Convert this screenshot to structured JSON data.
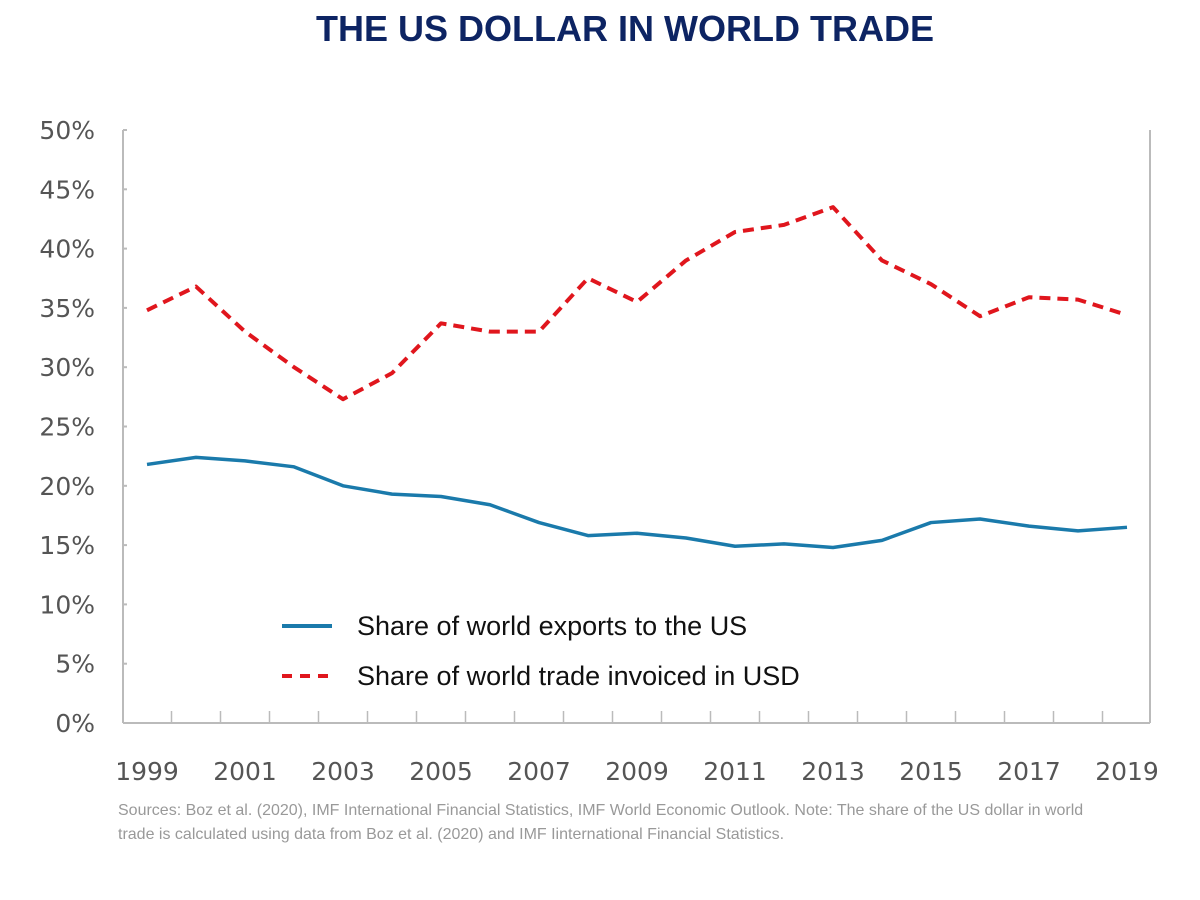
{
  "chart_data": {
    "type": "line",
    "title": "THE US DOLLAR IN WORLD TRADE",
    "xlabel": "",
    "ylabel": "",
    "x": [
      1999,
      2000,
      2001,
      2002,
      2003,
      2004,
      2005,
      2006,
      2007,
      2008,
      2009,
      2010,
      2011,
      2012,
      2013,
      2014,
      2015,
      2016,
      2017,
      2018,
      2019
    ],
    "x_tick_labels": [
      "1999",
      "2001",
      "2003",
      "2005",
      "2007",
      "2009",
      "2011",
      "2013",
      "2015",
      "2017",
      "2019"
    ],
    "y_tick_labels": [
      "0%",
      "5%",
      "10%",
      "15%",
      "20%",
      "25%",
      "30%",
      "35%",
      "40%",
      "45%",
      "50%"
    ],
    "ylim": [
      0,
      50
    ],
    "grid": false,
    "legend_placement": "bottom-center",
    "series": [
      {
        "name": "Share of world exports to the US",
        "color": "#1a7aab",
        "style": "solid",
        "values": [
          21.8,
          22.4,
          22.1,
          21.6,
          20.0,
          19.3,
          19.1,
          18.4,
          16.9,
          15.8,
          16.0,
          15.6,
          14.9,
          15.1,
          14.8,
          15.4,
          16.9,
          17.2,
          16.6,
          16.2,
          16.5
        ]
      },
      {
        "name": "Share of world trade invoiced in USD",
        "color": "#e0161d",
        "style": "dashed",
        "values": [
          34.8,
          36.8,
          33.0,
          30.0,
          27.3,
          29.5,
          33.7,
          33.0,
          33.0,
          37.5,
          35.5,
          39.0,
          41.4,
          42.0,
          43.5,
          39.0,
          37.0,
          34.3,
          35.9,
          35.7,
          34.4
        ]
      }
    ]
  },
  "source_note": "Sources: Boz et al. (2020), IMF International Financial Statistics, IMF World Economic Outlook. Note: The share of the US dollar in world trade is calculated using data from Boz et al. (2020) and IMF Iinternational Financial Statistics."
}
